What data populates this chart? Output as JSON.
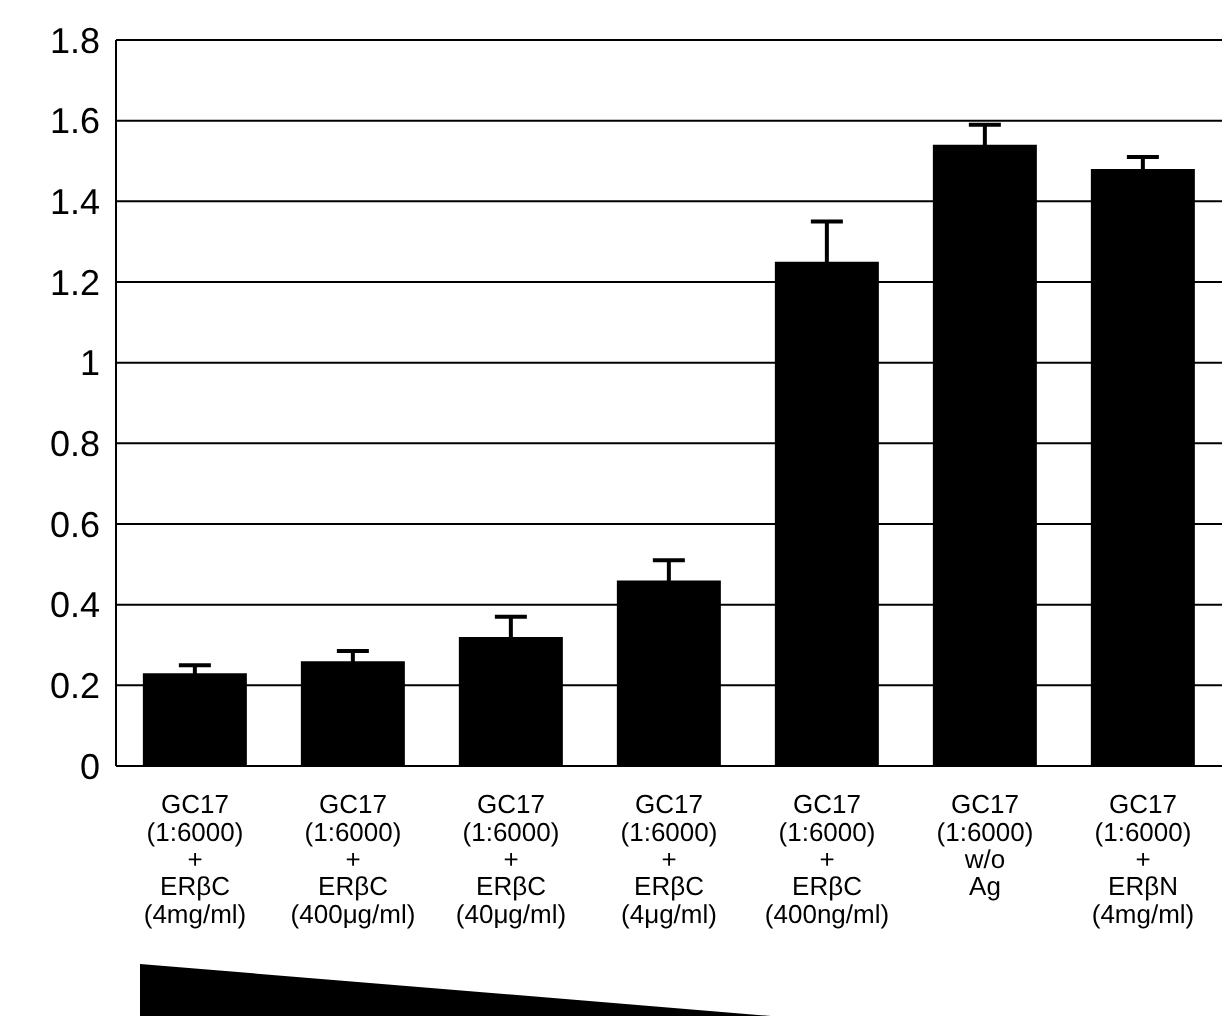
{
  "chart_data": {
    "type": "bar",
    "categories": [
      "GC17\n(1:6000)\n+\nERβC\n(4mg/ml)",
      "GC17\n(1:6000)\n+\nERβC\n(400μg/ml)",
      "GC17\n(1:6000)\n+\nERβC\n(40μg/ml)",
      "GC17\n(1:6000)\n+\nERβC\n(4μg/ml)",
      "GC17\n(1:6000)\n+\nERβC\n(400ng/ml)",
      "GC17\n(1:6000)\nw/o\nAg",
      "GC17\n(1:6000)\n+\nERβN\n(4mg/ml)"
    ],
    "values": [
      0.23,
      0.26,
      0.32,
      0.46,
      1.25,
      1.54,
      1.48
    ],
    "errors": [
      0.02,
      0.025,
      0.05,
      0.05,
      0.1,
      0.05,
      0.03
    ],
    "color": "#000000",
    "ylim": [
      0,
      1.8
    ],
    "yticks": [
      0,
      0.2,
      0.4,
      0.6,
      0.8,
      1,
      1.2,
      1.4,
      1.6,
      1.8
    ],
    "grid": "y",
    "legend": false
  }
}
